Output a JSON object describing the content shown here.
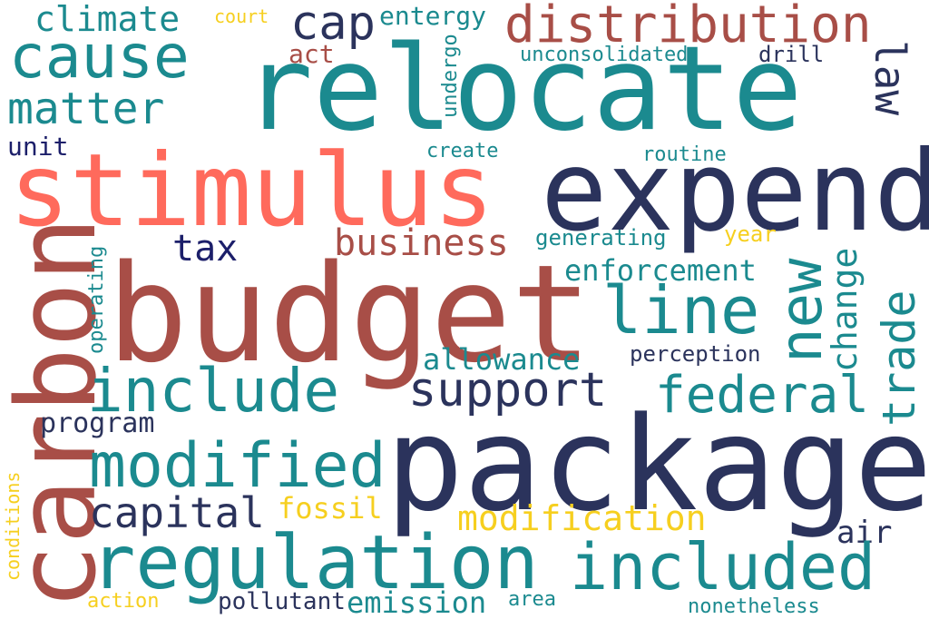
{
  "colors": {
    "teal": "#1b8a8f",
    "navy": "#2b335c",
    "brick": "#a84e47",
    "coral": "#ff6a5c",
    "gold": "#f6cf1f",
    "darknavy": "#1c1f6a"
  },
  "words": [
    {
      "text": "relocate",
      "color": "teal"
    },
    {
      "text": "stimulus",
      "color": "coral"
    },
    {
      "text": "expend",
      "color": "navy"
    },
    {
      "text": "budget",
      "color": "brick"
    },
    {
      "text": "package",
      "color": "navy"
    },
    {
      "text": "carbon",
      "color": "brick"
    },
    {
      "text": "distribution",
      "color": "brick"
    },
    {
      "text": "cause",
      "color": "teal"
    },
    {
      "text": "climate",
      "color": "teal"
    },
    {
      "text": "matter",
      "color": "teal"
    },
    {
      "text": "court",
      "color": "gold"
    },
    {
      "text": "cap",
      "color": "navy"
    },
    {
      "text": "entergy",
      "color": "teal"
    },
    {
      "text": "act",
      "color": "brick"
    },
    {
      "text": "undergo",
      "color": "teal"
    },
    {
      "text": "unconsolidated",
      "color": "teal"
    },
    {
      "text": "drill",
      "color": "navy"
    },
    {
      "text": "law",
      "color": "navy"
    },
    {
      "text": "unit",
      "color": "darknavy"
    },
    {
      "text": "create",
      "color": "teal"
    },
    {
      "text": "routine",
      "color": "teal"
    },
    {
      "text": "tax",
      "color": "darknavy"
    },
    {
      "text": "business",
      "color": "brick"
    },
    {
      "text": "generating",
      "color": "teal"
    },
    {
      "text": "year",
      "color": "gold"
    },
    {
      "text": "new",
      "color": "teal"
    },
    {
      "text": "change",
      "color": "teal"
    },
    {
      "text": "enforcement",
      "color": "teal"
    },
    {
      "text": "operating",
      "color": "teal"
    },
    {
      "text": "line",
      "color": "teal"
    },
    {
      "text": "trade",
      "color": "teal"
    },
    {
      "text": "allowance",
      "color": "teal"
    },
    {
      "text": "perception",
      "color": "navy"
    },
    {
      "text": "include",
      "color": "teal"
    },
    {
      "text": "support",
      "color": "navy"
    },
    {
      "text": "federal",
      "color": "teal"
    },
    {
      "text": "program",
      "color": "navy"
    },
    {
      "text": "modified",
      "color": "teal"
    },
    {
      "text": "conditions",
      "color": "gold"
    },
    {
      "text": "capital",
      "color": "navy"
    },
    {
      "text": "fossil",
      "color": "gold"
    },
    {
      "text": "modification",
      "color": "gold"
    },
    {
      "text": "air",
      "color": "navy"
    },
    {
      "text": "regulation",
      "color": "teal"
    },
    {
      "text": "included",
      "color": "teal"
    },
    {
      "text": "action",
      "color": "gold"
    },
    {
      "text": "pollutant",
      "color": "navy"
    },
    {
      "text": "emission",
      "color": "teal"
    },
    {
      "text": "area",
      "color": "teal"
    },
    {
      "text": "nonetheless",
      "color": "teal"
    }
  ]
}
